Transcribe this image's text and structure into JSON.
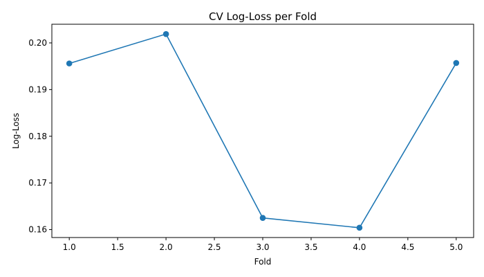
{
  "chart_data": {
    "type": "line",
    "title": "CV Log-Loss per Fold",
    "xlabel": "Fold",
    "ylabel": "Log-Loss",
    "x": [
      1,
      2,
      3,
      4,
      5
    ],
    "series": [
      {
        "values": [
          0.1956,
          0.2019,
          0.1625,
          0.1604,
          0.1957
        ],
        "color": "#1f77b4"
      }
    ],
    "xlim": [
      0.82,
      5.18
    ],
    "ylim": [
      0.1583,
      0.204
    ],
    "xticks": [
      1.0,
      1.5,
      2.0,
      2.5,
      3.0,
      3.5,
      4.0,
      4.5,
      5.0
    ],
    "xtick_labels": [
      "1.0",
      "1.5",
      "2.0",
      "2.5",
      "3.0",
      "3.5",
      "4.0",
      "4.5",
      "5.0"
    ],
    "yticks": [
      0.16,
      0.17,
      0.18,
      0.19,
      0.2
    ],
    "ytick_labels": [
      "0.16",
      "0.17",
      "0.18",
      "0.19",
      "0.20"
    ],
    "grid": false,
    "legend": "none",
    "marker": "circle"
  }
}
